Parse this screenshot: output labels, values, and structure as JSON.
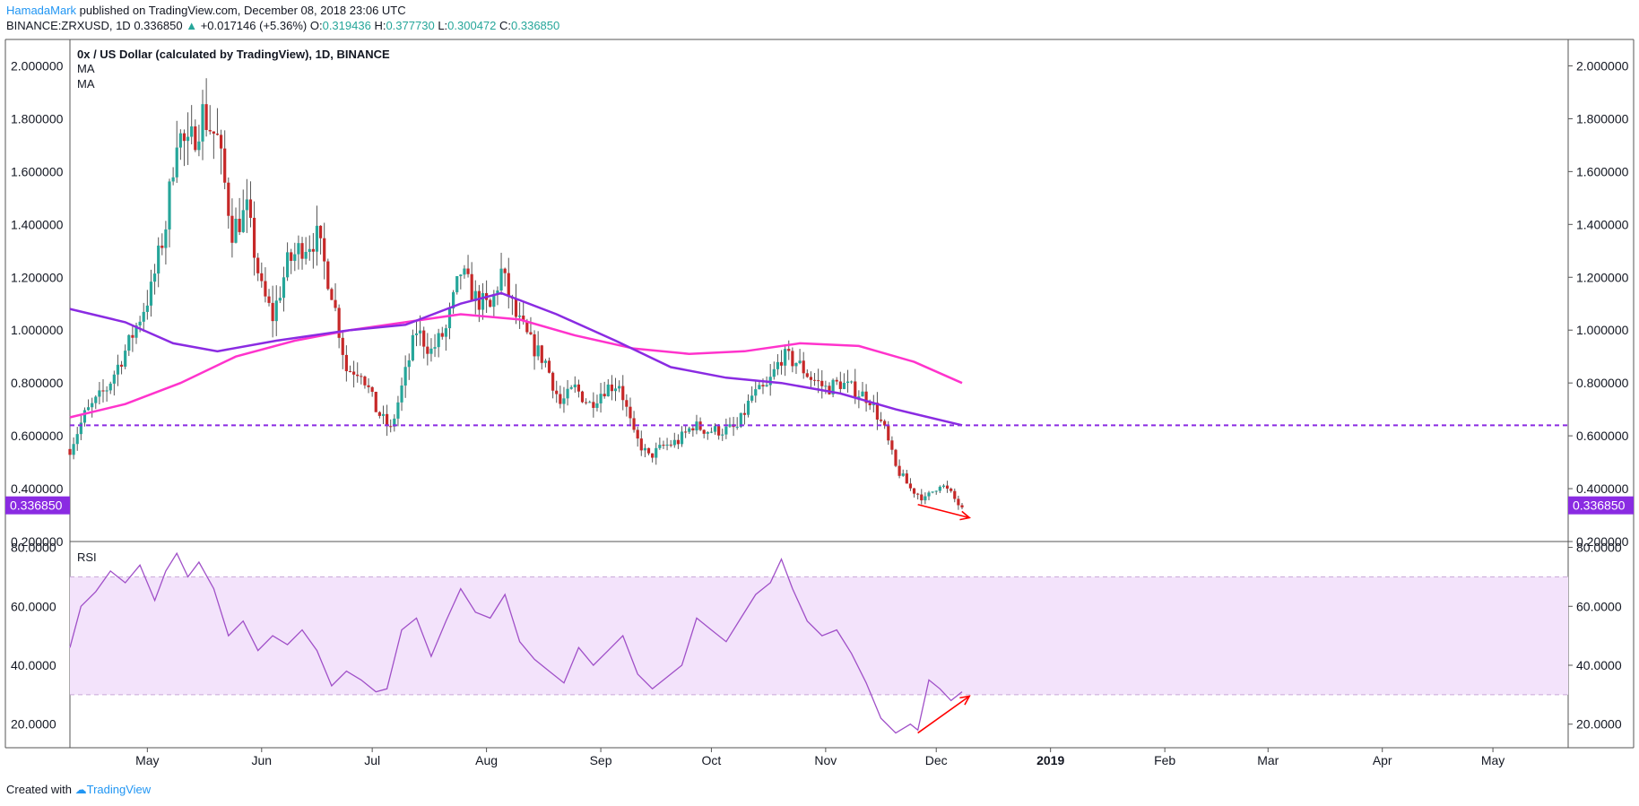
{
  "header": {
    "author": "HamadaMark",
    "published": "published on TradingView.com, December 08, 2018 23:06 UTC",
    "symbol_line": "BINANCE:ZRXUSD, 1D",
    "last": "0.336850",
    "change_arrow": "▲",
    "change": "+0.017146 (+5.36%)",
    "o_label": "O:",
    "o": "0.319436",
    "h_label": "H:",
    "h": "0.377730",
    "l_label": "L:",
    "l": "0.300472",
    "c_label": "C:",
    "c": "0.336850"
  },
  "footer": {
    "created_with": "Created with",
    "brand": "TradingView"
  },
  "colors": {
    "up": "#26a69a",
    "down": "#c62828",
    "wick": "#555555",
    "ma_fast": "#8a2be2",
    "ma_slow": "#ff33cc",
    "support": "#8a2be2",
    "rsi_line": "#a050c8",
    "rsi_band": "#f3e3fb",
    "arrow": "#ff0000",
    "price_tag": "#8a2be2"
  },
  "chart_data": [
    {
      "type": "candlestick",
      "title": "0x / US Dollar (calculated by TradingView), 1D, BINANCE",
      "legend": [
        "MA",
        "MA"
      ],
      "ylim": [
        0.2,
        2.1
      ],
      "y_ticks": [
        "2.000000",
        "1.800000",
        "1.600000",
        "1.400000",
        "1.200000",
        "1.000000",
        "0.800000",
        "0.600000",
        "0.400000",
        "0.200000"
      ],
      "current_price": "0.336850",
      "support_level": 0.64,
      "keypoints": [
        [
          "2018-04-10",
          0.55
        ],
        [
          "2018-04-14",
          0.68
        ],
        [
          "2018-04-20",
          0.78
        ],
        [
          "2018-04-26",
          0.95
        ],
        [
          "2018-05-02",
          1.15
        ],
        [
          "2018-05-06",
          1.4
        ],
        [
          "2018-05-09",
          1.75
        ],
        [
          "2018-05-12",
          1.68
        ],
        [
          "2018-05-16",
          1.82
        ],
        [
          "2018-05-20",
          1.72
        ],
        [
          "2018-05-24",
          1.38
        ],
        [
          "2018-05-28",
          1.45
        ],
        [
          "2018-06-01",
          1.15
        ],
        [
          "2018-06-04",
          1.05
        ],
        [
          "2018-06-08",
          1.25
        ],
        [
          "2018-06-12",
          1.32
        ],
        [
          "2018-06-16",
          1.35
        ],
        [
          "2018-06-20",
          1.15
        ],
        [
          "2018-06-24",
          0.85
        ],
        [
          "2018-06-28",
          0.85
        ],
        [
          "2018-07-02",
          0.7
        ],
        [
          "2018-07-06",
          0.62
        ],
        [
          "2018-07-09",
          0.78
        ],
        [
          "2018-07-13",
          1.0
        ],
        [
          "2018-07-17",
          0.92
        ],
        [
          "2018-07-21",
          1.0
        ],
        [
          "2018-07-25",
          1.22
        ],
        [
          "2018-07-29",
          1.12
        ],
        [
          "2018-08-02",
          1.08
        ],
        [
          "2018-08-05",
          1.22
        ],
        [
          "2018-08-09",
          1.05
        ],
        [
          "2018-08-13",
          0.95
        ],
        [
          "2018-08-17",
          0.88
        ],
        [
          "2018-08-21",
          0.72
        ],
        [
          "2018-08-25",
          0.78
        ],
        [
          "2018-08-29",
          0.72
        ],
        [
          "2018-09-02",
          0.78
        ],
        [
          "2018-09-06",
          0.8
        ],
        [
          "2018-09-10",
          0.6
        ],
        [
          "2018-09-14",
          0.52
        ],
        [
          "2018-09-18",
          0.56
        ],
        [
          "2018-09-22",
          0.58
        ],
        [
          "2018-09-26",
          0.64
        ],
        [
          "2018-09-30",
          0.62
        ],
        [
          "2018-10-04",
          0.62
        ],
        [
          "2018-10-08",
          0.63
        ],
        [
          "2018-10-12",
          0.75
        ],
        [
          "2018-10-16",
          0.78
        ],
        [
          "2018-10-20",
          0.9
        ],
        [
          "2018-10-24",
          0.88
        ],
        [
          "2018-10-28",
          0.82
        ],
        [
          "2018-11-01",
          0.78
        ],
        [
          "2018-11-05",
          0.8
        ],
        [
          "2018-11-09",
          0.77
        ],
        [
          "2018-11-13",
          0.74
        ],
        [
          "2018-11-17",
          0.62
        ],
        [
          "2018-11-20",
          0.48
        ],
        [
          "2018-11-24",
          0.4
        ],
        [
          "2018-11-28",
          0.36
        ],
        [
          "2018-12-02",
          0.42
        ],
        [
          "2018-12-05",
          0.38
        ],
        [
          "2018-12-08",
          0.32
        ]
      ],
      "ma_fast": [
        [
          "2018-04-10",
          1.08
        ],
        [
          "2018-04-25",
          1.03
        ],
        [
          "2018-05-08",
          0.95
        ],
        [
          "2018-05-20",
          0.92
        ],
        [
          "2018-06-05",
          0.96
        ],
        [
          "2018-06-25",
          1.0
        ],
        [
          "2018-07-10",
          1.02
        ],
        [
          "2018-07-25",
          1.1
        ],
        [
          "2018-08-05",
          1.14
        ],
        [
          "2018-08-20",
          1.06
        ],
        [
          "2018-09-05",
          0.96
        ],
        [
          "2018-09-20",
          0.86
        ],
        [
          "2018-10-05",
          0.82
        ],
        [
          "2018-10-20",
          0.8
        ],
        [
          "2018-11-05",
          0.76
        ],
        [
          "2018-11-20",
          0.7
        ],
        [
          "2018-12-08",
          0.64
        ]
      ],
      "ma_slow": [
        [
          "2018-04-10",
          0.67
        ],
        [
          "2018-04-25",
          0.72
        ],
        [
          "2018-05-10",
          0.8
        ],
        [
          "2018-05-25",
          0.9
        ],
        [
          "2018-06-10",
          0.96
        ],
        [
          "2018-06-25",
          1.0
        ],
        [
          "2018-07-10",
          1.03
        ],
        [
          "2018-07-25",
          1.06
        ],
        [
          "2018-08-10",
          1.04
        ],
        [
          "2018-08-25",
          0.98
        ],
        [
          "2018-09-10",
          0.93
        ],
        [
          "2018-09-25",
          0.91
        ],
        [
          "2018-10-10",
          0.92
        ],
        [
          "2018-10-25",
          0.95
        ],
        [
          "2018-11-10",
          0.94
        ],
        [
          "2018-11-25",
          0.88
        ],
        [
          "2018-12-08",
          0.8
        ]
      ],
      "annotation_arrow": [
        [
          "2018-11-26",
          0.34
        ],
        [
          "2018-12-10",
          0.29
        ]
      ]
    },
    {
      "type": "line",
      "title": "RSI",
      "ylim": [
        12,
        82
      ],
      "y_ticks": [
        "80.0000",
        "60.0000",
        "40.0000",
        "20.0000"
      ],
      "band": [
        30,
        70
      ],
      "x_ticks": [
        "May",
        "Jun",
        "Jul",
        "Aug",
        "Sep",
        "Oct",
        "Nov",
        "Dec",
        "2019",
        "Feb",
        "Mar",
        "Apr",
        "May"
      ],
      "values": [
        [
          "2018-04-10",
          46
        ],
        [
          "2018-04-13",
          60
        ],
        [
          "2018-04-17",
          65
        ],
        [
          "2018-04-21",
          72
        ],
        [
          "2018-04-25",
          68
        ],
        [
          "2018-04-29",
          74
        ],
        [
          "2018-05-03",
          62
        ],
        [
          "2018-05-06",
          72
        ],
        [
          "2018-05-09",
          78
        ],
        [
          "2018-05-12",
          70
        ],
        [
          "2018-05-15",
          75
        ],
        [
          "2018-05-19",
          66
        ],
        [
          "2018-05-23",
          50
        ],
        [
          "2018-05-27",
          55
        ],
        [
          "2018-05-31",
          45
        ],
        [
          "2018-06-04",
          50
        ],
        [
          "2018-06-08",
          47
        ],
        [
          "2018-06-12",
          52
        ],
        [
          "2018-06-16",
          45
        ],
        [
          "2018-06-20",
          33
        ],
        [
          "2018-06-24",
          38
        ],
        [
          "2018-06-28",
          35
        ],
        [
          "2018-07-02",
          31
        ],
        [
          "2018-07-05",
          32
        ],
        [
          "2018-07-09",
          52
        ],
        [
          "2018-07-13",
          56
        ],
        [
          "2018-07-17",
          43
        ],
        [
          "2018-07-21",
          55
        ],
        [
          "2018-07-25",
          66
        ],
        [
          "2018-07-29",
          58
        ],
        [
          "2018-08-02",
          56
        ],
        [
          "2018-08-06",
          64
        ],
        [
          "2018-08-10",
          48
        ],
        [
          "2018-08-14",
          42
        ],
        [
          "2018-08-18",
          38
        ],
        [
          "2018-08-22",
          34
        ],
        [
          "2018-08-26",
          46
        ],
        [
          "2018-08-30",
          40
        ],
        [
          "2018-09-03",
          45
        ],
        [
          "2018-09-07",
          50
        ],
        [
          "2018-09-11",
          37
        ],
        [
          "2018-09-15",
          32
        ],
        [
          "2018-09-19",
          36
        ],
        [
          "2018-09-23",
          40
        ],
        [
          "2018-09-27",
          56
        ],
        [
          "2018-10-01",
          52
        ],
        [
          "2018-10-05",
          48
        ],
        [
          "2018-10-09",
          56
        ],
        [
          "2018-10-13",
          64
        ],
        [
          "2018-10-17",
          68
        ],
        [
          "2018-10-20",
          76
        ],
        [
          "2018-10-23",
          66
        ],
        [
          "2018-10-27",
          55
        ],
        [
          "2018-10-31",
          50
        ],
        [
          "2018-11-04",
          52
        ],
        [
          "2018-11-08",
          44
        ],
        [
          "2018-11-12",
          34
        ],
        [
          "2018-11-16",
          22
        ],
        [
          "2018-11-20",
          17
        ],
        [
          "2018-11-24",
          20
        ],
        [
          "2018-11-26",
          18
        ],
        [
          "2018-11-29",
          35
        ],
        [
          "2018-12-02",
          32
        ],
        [
          "2018-12-05",
          28
        ],
        [
          "2018-12-08",
          31
        ]
      ],
      "annotation_arrow": [
        [
          "2018-11-26",
          17
        ],
        [
          "2018-12-10",
          29.5
        ]
      ]
    }
  ]
}
